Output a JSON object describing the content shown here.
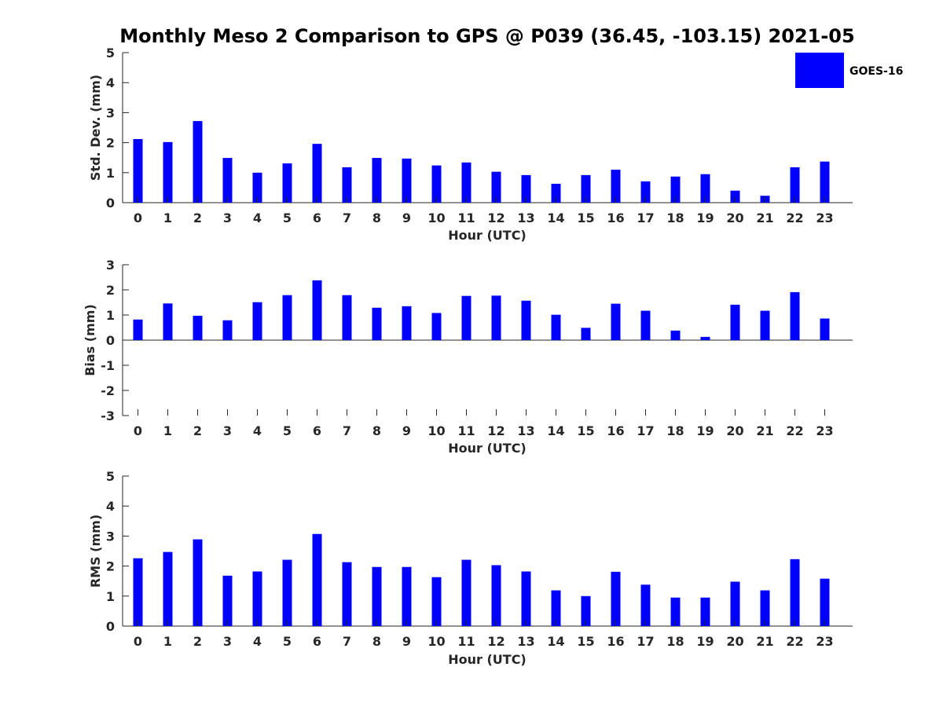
{
  "title": "Monthly Meso 2 Comparison to GPS @ P039 (36.45, -103.15) 2021-05",
  "colors": {
    "bar": "#0000ff",
    "axis": "#262626"
  },
  "legend": {
    "label": "GOES-16",
    "placement": "top-right"
  },
  "chart_data": [
    {
      "type": "bar",
      "series": [
        {
          "name": "GOES-16",
          "values": [
            2.12,
            2.02,
            2.72,
            1.49,
            1.0,
            1.31,
            1.96,
            1.18,
            1.49,
            1.47,
            1.24,
            1.34,
            1.03,
            0.92,
            0.63,
            0.92,
            1.1,
            0.71,
            0.87,
            0.95,
            0.4,
            0.23,
            1.18,
            1.37
          ]
        }
      ],
      "categories": [
        "0",
        "1",
        "2",
        "3",
        "4",
        "5",
        "6",
        "7",
        "8",
        "9",
        "10",
        "11",
        "12",
        "13",
        "14",
        "15",
        "16",
        "17",
        "18",
        "19",
        "20",
        "21",
        "22",
        "23"
      ],
      "xlabel": "Hour (UTC)",
      "ylabel": "Std. Dev. (mm)",
      "ylim": [
        0,
        5
      ],
      "yticks": [
        "0",
        "1",
        "2",
        "3",
        "4",
        "5"
      ],
      "grid": false
    },
    {
      "type": "bar",
      "series": [
        {
          "name": "GOES-16",
          "values": [
            0.82,
            1.46,
            0.97,
            0.79,
            1.51,
            1.79,
            2.38,
            1.79,
            1.29,
            1.35,
            1.08,
            1.76,
            1.77,
            1.57,
            1.01,
            0.49,
            1.45,
            1.17,
            0.38,
            0.13,
            1.41,
            1.17,
            1.91,
            0.86
          ]
        }
      ],
      "categories": [
        "0",
        "1",
        "2",
        "3",
        "4",
        "5",
        "6",
        "7",
        "8",
        "9",
        "10",
        "11",
        "12",
        "13",
        "14",
        "15",
        "16",
        "17",
        "18",
        "19",
        "20",
        "21",
        "22",
        "23"
      ],
      "xlabel": "Hour (UTC)",
      "ylabel": "Bias (mm)",
      "ylim": [
        -3,
        3
      ],
      "yticks": [
        "-3",
        "-2",
        "-1",
        "0",
        "1",
        "2",
        "3"
      ],
      "grid": false
    },
    {
      "type": "bar",
      "series": [
        {
          "name": "GOES-16",
          "values": [
            2.26,
            2.47,
            2.89,
            1.68,
            1.82,
            2.21,
            3.07,
            2.13,
            1.97,
            1.97,
            1.63,
            2.21,
            2.03,
            1.82,
            1.19,
            1.0,
            1.81,
            1.38,
            0.95,
            0.95,
            1.48,
            1.19,
            2.23,
            1.58
          ]
        }
      ],
      "categories": [
        "0",
        "1",
        "2",
        "3",
        "4",
        "5",
        "6",
        "7",
        "8",
        "9",
        "10",
        "11",
        "12",
        "13",
        "14",
        "15",
        "16",
        "17",
        "18",
        "19",
        "20",
        "21",
        "22",
        "23"
      ],
      "xlabel": "Hour (UTC)",
      "ylabel": "RMS (mm)",
      "ylim": [
        0,
        5
      ],
      "yticks": [
        "0",
        "1",
        "2",
        "3",
        "4",
        "5"
      ],
      "grid": false
    }
  ]
}
